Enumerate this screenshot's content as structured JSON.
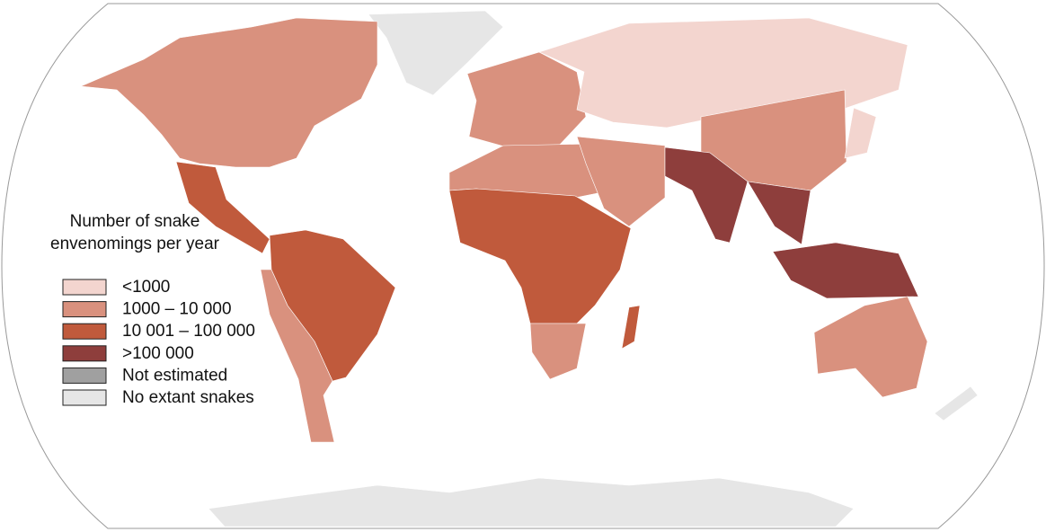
{
  "legend": {
    "title": [
      "Number of snake",
      "envenomings per year"
    ],
    "items": [
      {
        "label": "<1000",
        "color": "#f3d5cf"
      },
      {
        "label": "1000 – 10 000",
        "color": "#d9917e"
      },
      {
        "label": "10 001 – 100 000",
        "color": "#c05a3c"
      },
      {
        "label": ">100 000",
        "color": "#8e3e3c"
      },
      {
        "label": "Not estimated",
        "color": "#a0a0a0"
      },
      {
        "label": "No extant snakes",
        "color": "#e6e6e6"
      }
    ]
  }
}
